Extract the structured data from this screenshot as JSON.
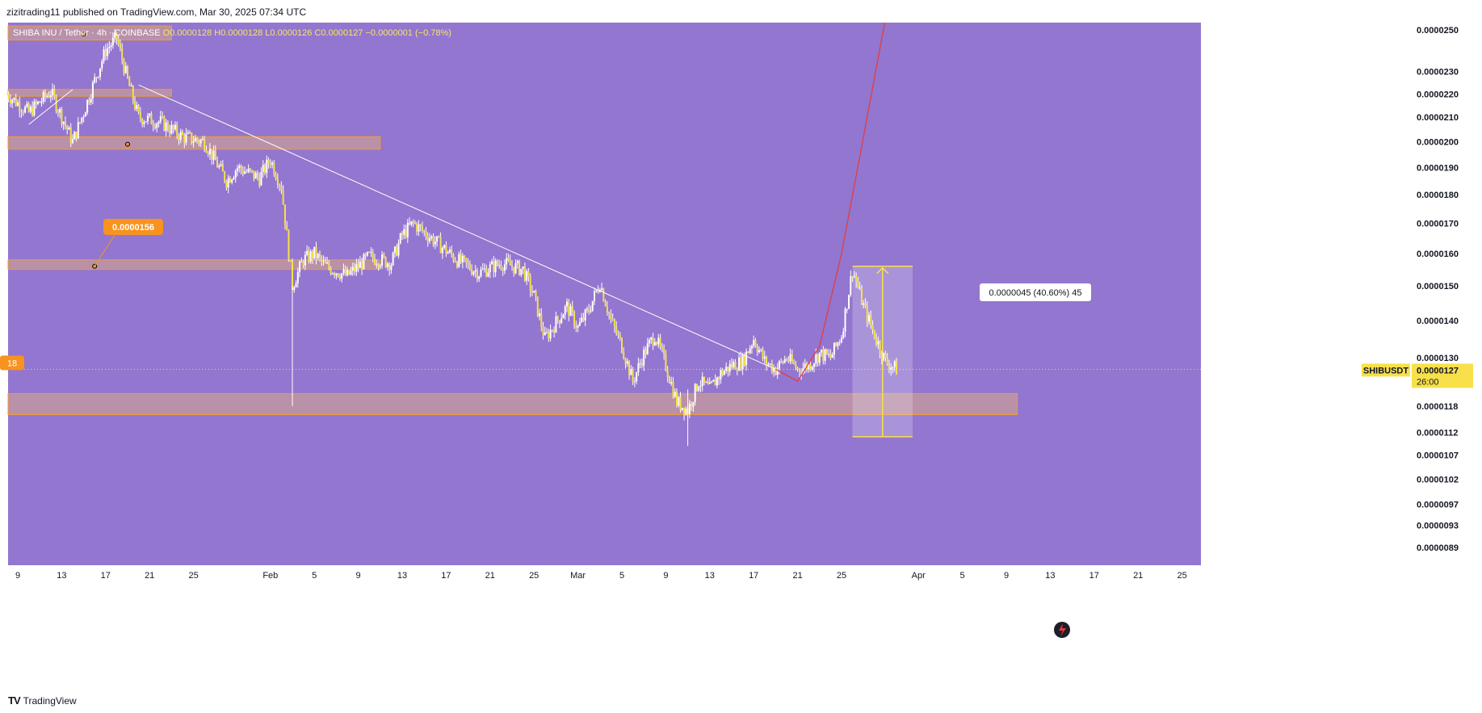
{
  "header": {
    "publisher_text": "zizitrading11 published on TradingView.com, Mar 30, 2025 07:34 UTC"
  },
  "symbol": {
    "name": "SHIBA INU / Tether · 4h · COINBASE",
    "open": "O0.0000128",
    "high": "H0.0000128",
    "low": "L0.0000126",
    "close": "C0.0000127",
    "change": "−0.0000001 (−0.78%)"
  },
  "labels": {
    "level_callout": "0.0000156",
    "measure_callout": "0.0000045 (40.60%) 45",
    "left_edge_tag": "18",
    "ticker_tag": "SHIBUSDT",
    "price_tag": "0.0000127",
    "countdown": "26:00"
  },
  "footer": {
    "brand": "TradingView"
  },
  "colors": {
    "background": "#9376cf",
    "candle": "#f7e04a",
    "candle_wick": "#ffffff",
    "zone_fill": "#c69b9b",
    "zone_border": "#f39c2a",
    "trendline": "#ffffff",
    "projection": "#e8393a",
    "callout_orange": "#f7931e",
    "price_tag": "#f7e04a"
  },
  "chart_data": {
    "type": "candlestick",
    "y_scale": "log",
    "ylim": [
      8.9e-06,
      2.5e-05
    ],
    "y_ticks": [
      "0.0000250",
      "0.0000230",
      "0.0000220",
      "0.0000210",
      "0.0000200",
      "0.0000190",
      "0.0000180",
      "0.0000170",
      "0.0000160",
      "0.0000150",
      "0.0000140",
      "0.0000130",
      "0.0000118",
      "0.0000112",
      "0.0000107",
      "0.0000102",
      "0.0000097",
      "0.0000093",
      "0.0000089"
    ],
    "x_ticks": [
      {
        "label": "9",
        "date": "2025-01-09"
      },
      {
        "label": "13",
        "date": "2025-01-13"
      },
      {
        "label": "17",
        "date": "2025-01-17"
      },
      {
        "label": "21",
        "date": "2025-01-21"
      },
      {
        "label": "25",
        "date": "2025-01-25"
      },
      {
        "label": "Feb",
        "date": "2025-02-01"
      },
      {
        "label": "5",
        "date": "2025-02-05"
      },
      {
        "label": "9",
        "date": "2025-02-09"
      },
      {
        "label": "13",
        "date": "2025-02-13"
      },
      {
        "label": "17",
        "date": "2025-02-17"
      },
      {
        "label": "21",
        "date": "2025-02-21"
      },
      {
        "label": "25",
        "date": "2025-02-25"
      },
      {
        "label": "Mar",
        "date": "2025-03-01"
      },
      {
        "label": "5",
        "date": "2025-03-05"
      },
      {
        "label": "9",
        "date": "2025-03-09"
      },
      {
        "label": "13",
        "date": "2025-03-13"
      },
      {
        "label": "17",
        "date": "2025-03-17"
      },
      {
        "label": "21",
        "date": "2025-03-21"
      },
      {
        "label": "25",
        "date": "2025-03-25"
      },
      {
        "label": "Apr",
        "date": "2025-04-01"
      },
      {
        "label": "5",
        "date": "2025-04-05"
      },
      {
        "label": "9",
        "date": "2025-04-09"
      },
      {
        "label": "13",
        "date": "2025-04-13"
      },
      {
        "label": "17",
        "date": "2025-04-17"
      },
      {
        "label": "21",
        "date": "2025-04-21"
      },
      {
        "label": "25",
        "date": "2025-04-25"
      }
    ],
    "price_path": [
      [
        "2025-01-08",
        2.2e-05
      ],
      [
        "2025-01-10",
        2.12e-05
      ],
      [
        "2025-01-12",
        2.21e-05
      ],
      [
        "2025-01-14",
        2e-05
      ],
      [
        "2025-01-15",
        2.12e-05
      ],
      [
        "2025-01-16",
        2.26e-05
      ],
      [
        "2025-01-17",
        2.4e-05
      ],
      [
        "2025-01-18",
        2.46e-05
      ],
      [
        "2025-01-19",
        2.26e-05
      ],
      [
        "2025-01-20",
        2.1e-05
      ],
      [
        "2025-01-22",
        2.08e-05
      ],
      [
        "2025-01-24",
        2.02e-05
      ],
      [
        "2025-01-26",
        2e-05
      ],
      [
        "2025-01-28",
        1.85e-05
      ],
      [
        "2025-01-29",
        1.9e-05
      ],
      [
        "2025-01-31",
        1.86e-05
      ],
      [
        "2025-02-01",
        1.93e-05
      ],
      [
        "2025-02-02",
        1.83e-05
      ],
      [
        "2025-02-03",
        1.5e-05
      ],
      [
        "2025-02-04",
        1.58e-05
      ],
      [
        "2025-02-05",
        1.6e-05
      ],
      [
        "2025-02-06",
        1.56e-05
      ],
      [
        "2025-02-08",
        1.53e-05
      ],
      [
        "2025-02-10",
        1.59e-05
      ],
      [
        "2025-02-12",
        1.57e-05
      ],
      [
        "2025-02-13",
        1.66e-05
      ],
      [
        "2025-02-14",
        1.7e-05
      ],
      [
        "2025-02-16",
        1.64e-05
      ],
      [
        "2025-02-18",
        1.58e-05
      ],
      [
        "2025-02-20",
        1.54e-05
      ],
      [
        "2025-02-22",
        1.57e-05
      ],
      [
        "2025-02-24",
        1.55e-05
      ],
      [
        "2025-02-25",
        1.47e-05
      ],
      [
        "2025-02-26",
        1.35e-05
      ],
      [
        "2025-02-28",
        1.44e-05
      ],
      [
        "2025-03-01",
        1.38e-05
      ],
      [
        "2025-03-02",
        1.43e-05
      ],
      [
        "2025-03-03",
        1.51e-05
      ],
      [
        "2025-03-04",
        1.4e-05
      ],
      [
        "2025-03-05",
        1.33e-05
      ],
      [
        "2025-03-06",
        1.24e-05
      ],
      [
        "2025-03-07",
        1.31e-05
      ],
      [
        "2025-03-08",
        1.36e-05
      ],
      [
        "2025-03-09",
        1.28e-05
      ],
      [
        "2025-03-10",
        1.19e-05
      ],
      [
        "2025-03-11",
        1.17e-05
      ],
      [
        "2025-03-12",
        1.24e-05
      ],
      [
        "2025-03-13",
        1.22e-05
      ],
      [
        "2025-03-14",
        1.26e-05
      ],
      [
        "2025-03-15",
        1.28e-05
      ],
      [
        "2025-03-16",
        1.29e-05
      ],
      [
        "2025-03-17",
        1.35e-05
      ],
      [
        "2025-03-18",
        1.29e-05
      ],
      [
        "2025-03-19",
        1.27e-05
      ],
      [
        "2025-03-20",
        1.3e-05
      ],
      [
        "2025-03-21",
        1.27e-05
      ],
      [
        "2025-03-22",
        1.28e-05
      ],
      [
        "2025-03-23",
        1.31e-05
      ],
      [
        "2025-03-24",
        1.3e-05
      ],
      [
        "2025-03-25",
        1.36e-05
      ],
      [
        "2025-03-26",
        1.55e-05
      ],
      [
        "2025-03-27",
        1.44e-05
      ],
      [
        "2025-03-28",
        1.36e-05
      ],
      [
        "2025-03-29",
        1.29e-05
      ],
      [
        "2025-03-30",
        1.27e-05
      ]
    ],
    "zones": [
      {
        "name": "zone-top",
        "from": "2025-01-08",
        "to": "2025-01-23",
        "top": 2.52e-05,
        "bottom": 2.45e-05
      },
      {
        "name": "zone-2",
        "from": "2025-01-08",
        "to": "2025-01-23",
        "top": 2.22e-05,
        "bottom": 2.19e-05
      },
      {
        "name": "zone-3",
        "from": "2025-01-08",
        "to": "2025-02-11",
        "top": 2.02e-05,
        "bottom": 1.97e-05
      },
      {
        "name": "zone-4",
        "from": "2025-01-08",
        "to": "2025-02-11",
        "top": 1.58e-05,
        "bottom": 1.55e-05
      },
      {
        "name": "zone-support",
        "from": "2025-01-08",
        "to": "2025-04-10",
        "top": 1.21e-05,
        "bottom": 1.16e-05
      }
    ],
    "trendline": [
      [
        "2025-01-20",
        2.24e-05
      ],
      [
        "2025-03-19",
        1.27e-05
      ]
    ],
    "projection_curve": [
      [
        "2025-03-19",
        1.27e-05
      ],
      [
        "2025-03-21",
        1.24e-05
      ],
      [
        "2025-03-23",
        1.33e-05
      ],
      [
        "2025-03-25",
        1.6e-05
      ],
      [
        "2025-03-27",
        2.02e-05
      ],
      [
        "2025-03-29",
        2.62e-05
      ]
    ],
    "measure_box": {
      "from": "2025-03-26",
      "to": "2025-03-30",
      "top": 1.56e-05,
      "bottom": 1.11e-05
    },
    "last_price": 1.27e-05
  }
}
